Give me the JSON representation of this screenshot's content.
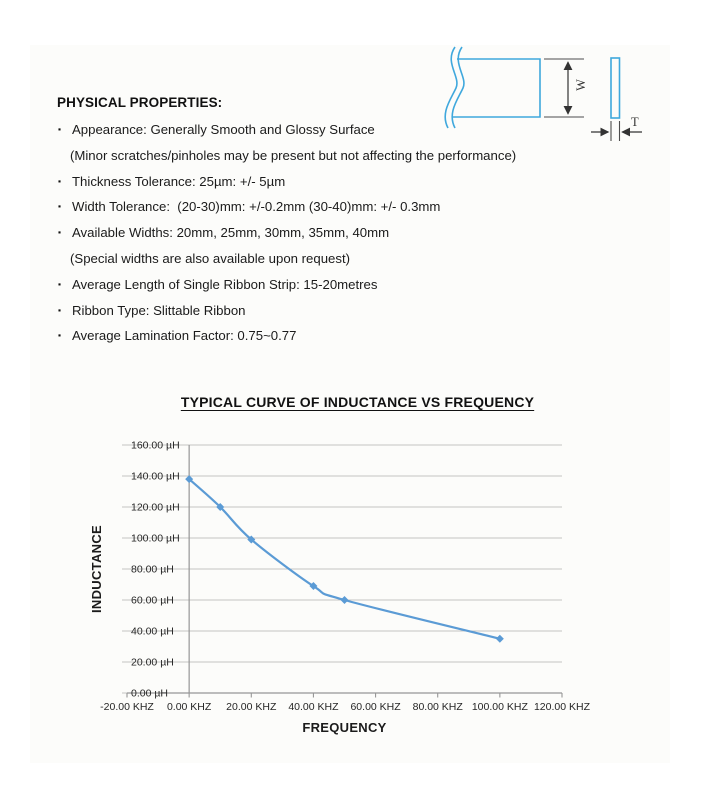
{
  "document": {
    "heading": "PHYSICAL PROPERTIES:",
    "bullets": [
      {
        "bullet": true,
        "text": "Appearance: Generally Smooth and Glossy Surface"
      },
      {
        "bullet": false,
        "text": "(Minor scratches/pinholes may be present but not affecting the performance)"
      },
      {
        "bullet": true,
        "text": "Thickness Tolerance: 25µm: +/- 5µm"
      },
      {
        "bullet": true,
        "text": "Width Tolerance:  (20-30)mm: +/-0.2mm (30-40)mm: +/- 0.3mm"
      },
      {
        "bullet": true,
        "text": "Available Widths: 20mm, 25mm, 30mm, 35mm, 40mm"
      },
      {
        "bullet": false,
        "text": "(Special widths are also available upon request)"
      },
      {
        "bullet": true,
        "text": "Average Length of Single Ribbon Strip: 15-20metres"
      },
      {
        "bullet": true,
        "text": "Ribbon Type: Slittable Ribbon"
      },
      {
        "bullet": true,
        "text": "Average Lamination Factor: 0.75~0.77"
      }
    ]
  },
  "diagram": {
    "width_label": "W",
    "thickness_label": "T",
    "outline_color": "#3fa8dd",
    "dimension_color": "#4d4d4d"
  },
  "chart_data": {
    "type": "line",
    "title": "TYPICAL CURVE OF INDUCTANCE VS FREQUENCY",
    "xlabel": "FREQUENCY",
    "ylabel": "INDUCTANCE",
    "x": [
      0,
      10,
      20,
      40,
      50,
      100
    ],
    "y": [
      138,
      120,
      99,
      69,
      60,
      35
    ],
    "x_unit": "KHZ",
    "y_unit": "µH",
    "xlim": [
      -20,
      120
    ],
    "ylim": [
      0,
      160
    ],
    "x_ticks": [
      "-20.00 KHZ",
      "0.00 KHZ",
      "20.00 KHZ",
      "40.00 KHZ",
      "60.00 KHZ",
      "80.00 KHZ",
      "100.00 KHZ",
      "120.00 KHZ"
    ],
    "y_ticks": [
      "0.00 µH",
      "20.00 µH",
      "40.00 µH",
      "60.00 µH",
      "80.00 µH",
      "100.00 µH",
      "120.00 µH",
      "140.00 µH",
      "160.00 µH"
    ],
    "grid": true,
    "legend": false,
    "marker": "diamond",
    "line_color": "#5b9bd5",
    "grid_color": "#c3c3c3",
    "axis_color": "#969696"
  }
}
